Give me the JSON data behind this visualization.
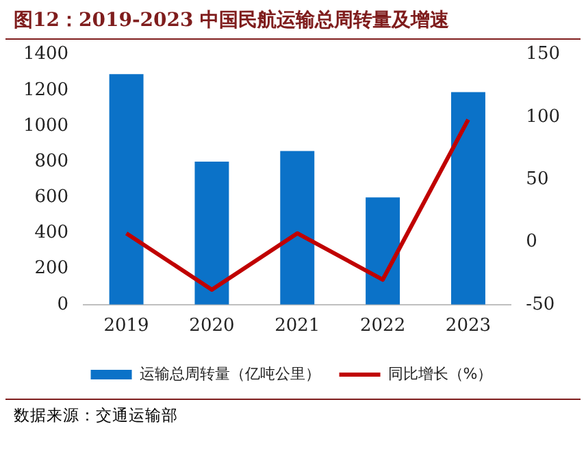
{
  "chart_data": {
    "type": "bar",
    "title": "图12：2019-2023 中国民航运输总周转量及增速",
    "categories": [
      "2019",
      "2020",
      "2021",
      "2022",
      "2023"
    ],
    "series": [
      {
        "name": "运输总周转量（亿吨公里）",
        "color": "#0b72c8",
        "values": [
          1290,
          800,
          860,
          600,
          1190
        ]
      },
      {
        "name": "同比增长（%）",
        "type": "line",
        "axis": "y2",
        "color": "#c00000",
        "values": [
          7,
          -38,
          7,
          -30,
          98
        ]
      }
    ],
    "ylim": [
      0,
      1400
    ],
    "yticks": [
      0,
      200,
      400,
      600,
      800,
      1000,
      1200,
      1400
    ],
    "y2lim": [
      -50,
      150
    ],
    "y2ticks": [
      -50,
      0,
      50,
      100,
      150
    ],
    "grid": false,
    "legend": "bottom",
    "marker": "none",
    "line_style": "solid",
    "annotations": [
      "数据来源：交通运输部"
    ]
  }
}
